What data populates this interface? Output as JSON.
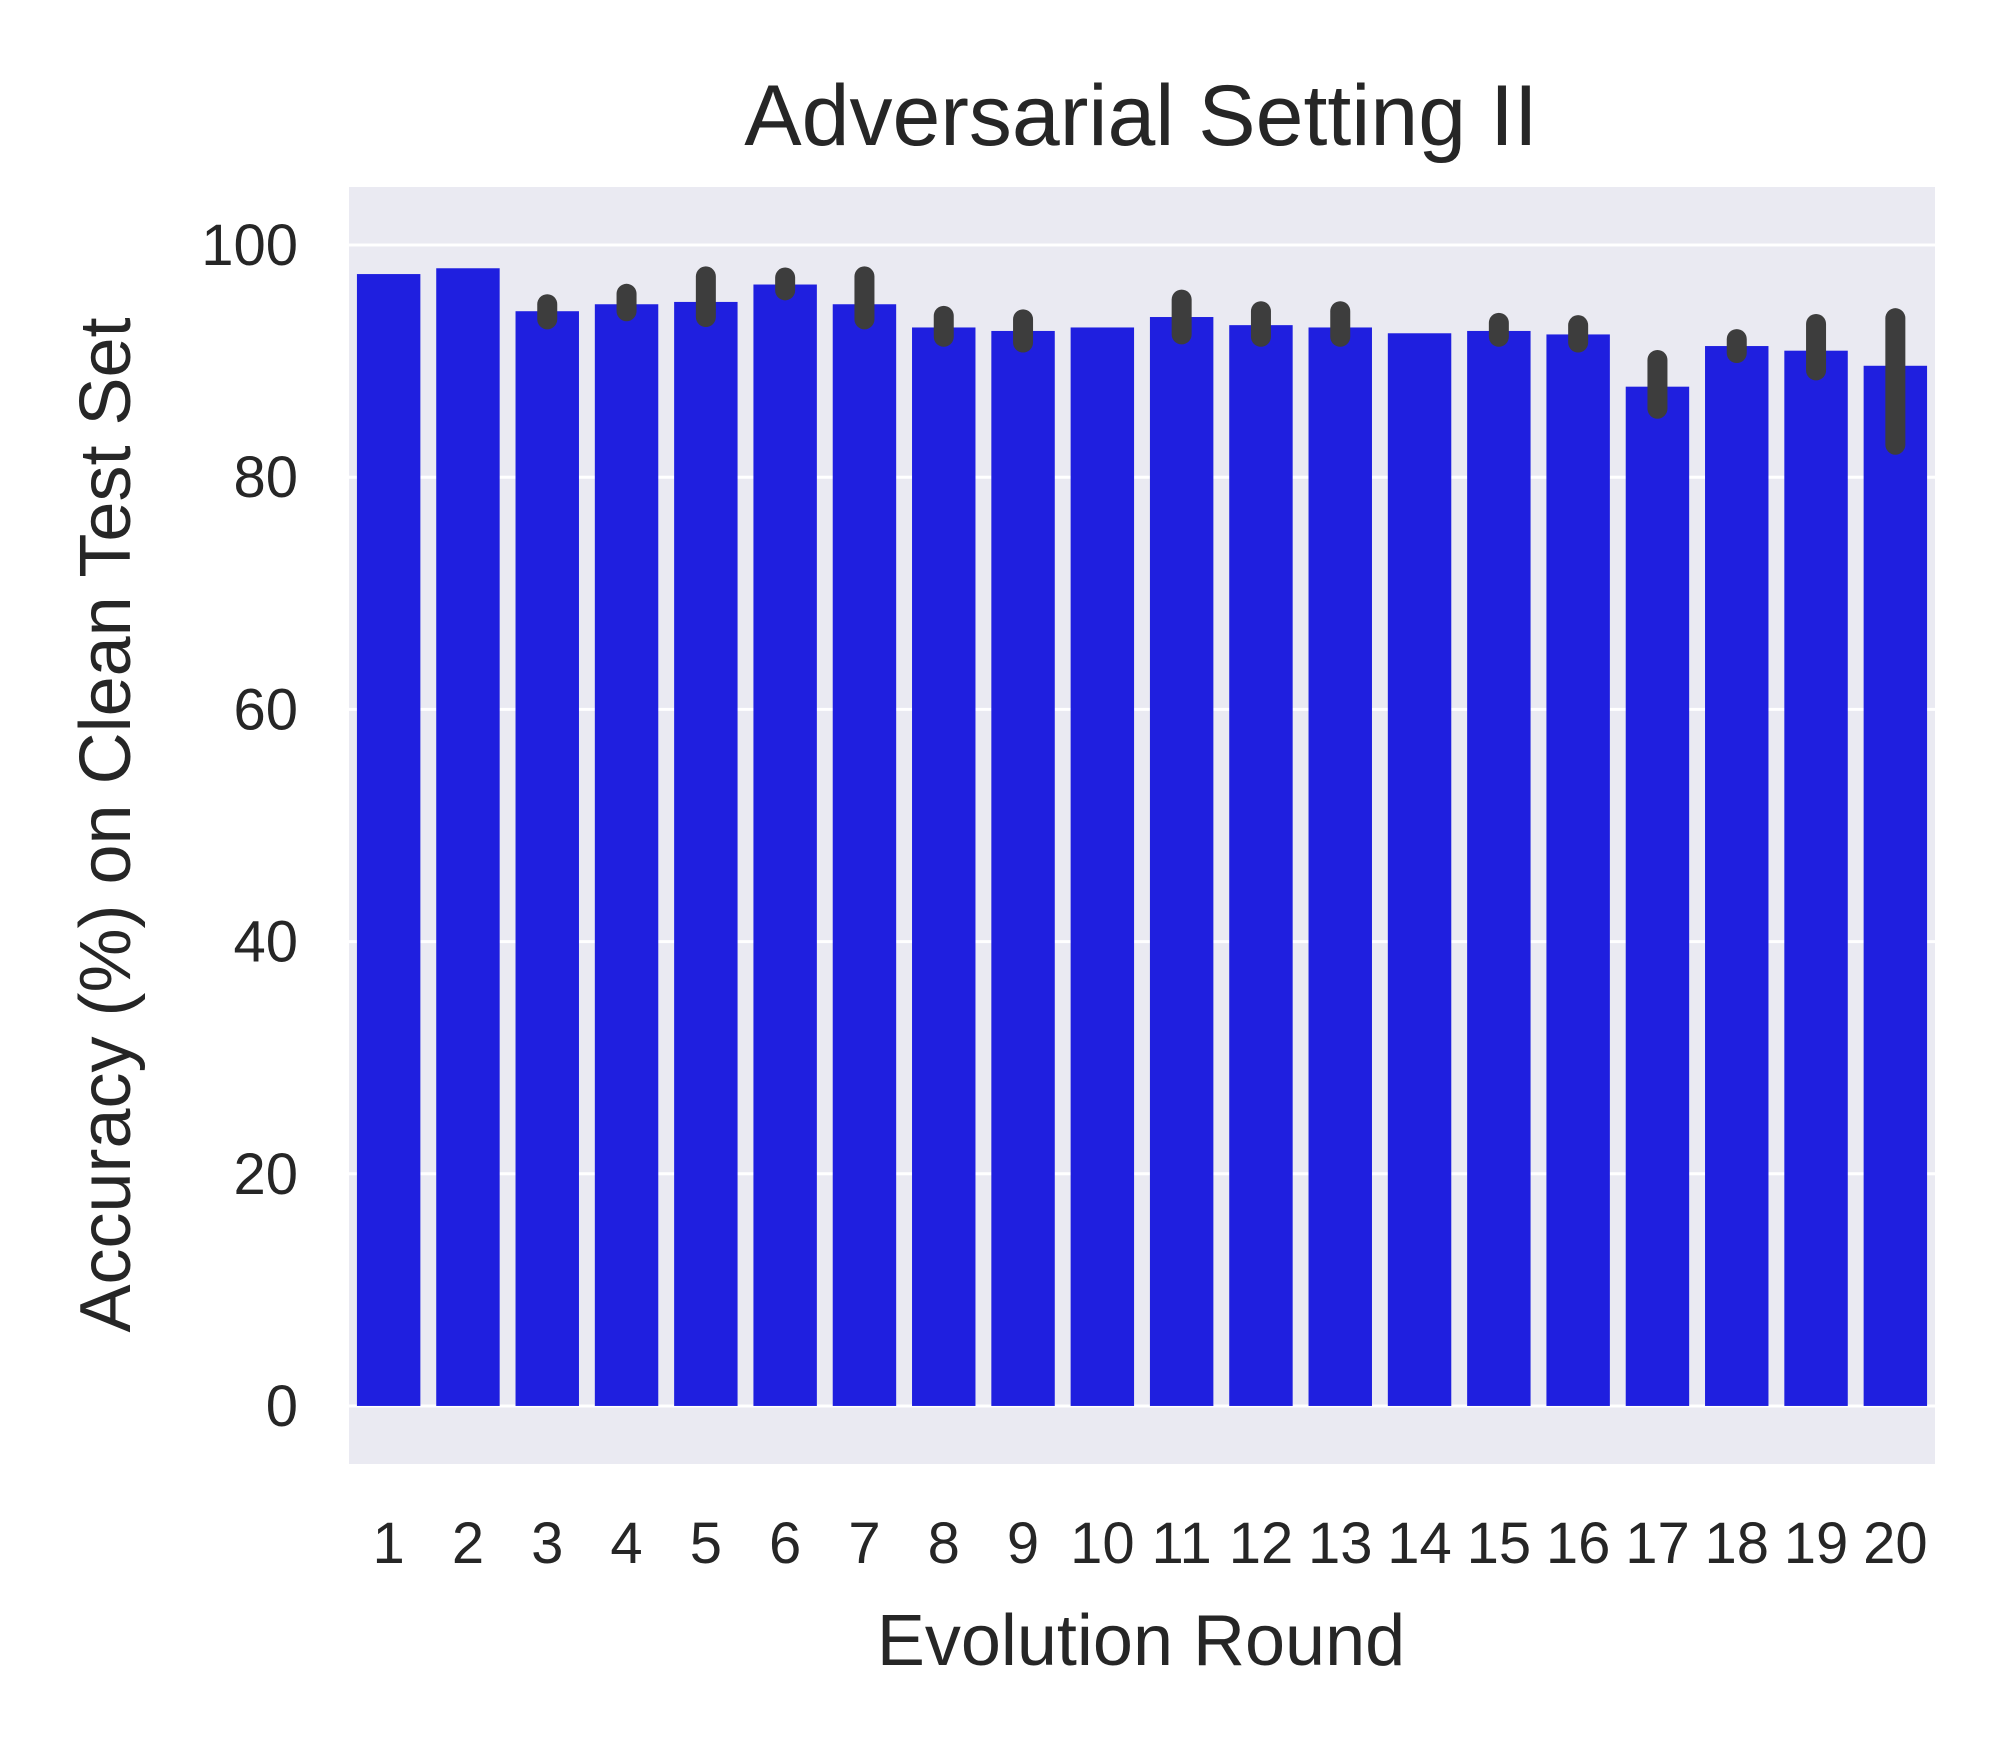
{
  "chart_data": {
    "type": "bar",
    "title": "Adversarial Setting II",
    "xlabel": "Evolution Round",
    "ylabel": "Accuracy (%) on Clean Test Set",
    "categories": [
      "1",
      "2",
      "3",
      "4",
      "5",
      "6",
      "7",
      "8",
      "9",
      "10",
      "11",
      "12",
      "13",
      "14",
      "15",
      "16",
      "17",
      "18",
      "19",
      "20"
    ],
    "values": [
      97.5,
      98.0,
      94.3,
      94.9,
      95.1,
      96.6,
      94.9,
      92.9,
      92.6,
      92.9,
      93.8,
      93.1,
      92.9,
      92.4,
      92.6,
      92.3,
      87.8,
      91.3,
      90.9,
      89.6
    ],
    "error_bars": [
      null,
      null,
      [
        93.6,
        94.9
      ],
      [
        94.3,
        95.8
      ],
      [
        93.8,
        97.3
      ],
      [
        96.1,
        97.2
      ],
      [
        93.6,
        97.3
      ],
      [
        92.1,
        93.9
      ],
      [
        91.6,
        93.6
      ],
      null,
      [
        92.3,
        95.3
      ],
      [
        92.1,
        94.3
      ],
      [
        92.1,
        94.3
      ],
      null,
      [
        92.1,
        93.3
      ],
      [
        91.6,
        93.1
      ],
      [
        85.9,
        90.1
      ],
      [
        90.7,
        91.9
      ],
      [
        89.2,
        93.2
      ],
      [
        82.8,
        93.7
      ]
    ],
    "yticks": [
      0,
      20,
      40,
      60,
      80,
      100
    ],
    "ylim": [
      -5,
      105
    ],
    "grid": true,
    "colors": {
      "bar": "#1f1fdf",
      "error_bar": "#3d3d3d",
      "plot_background": "#eaeaf2",
      "grid": "#ffffff",
      "text": "#262626"
    }
  }
}
